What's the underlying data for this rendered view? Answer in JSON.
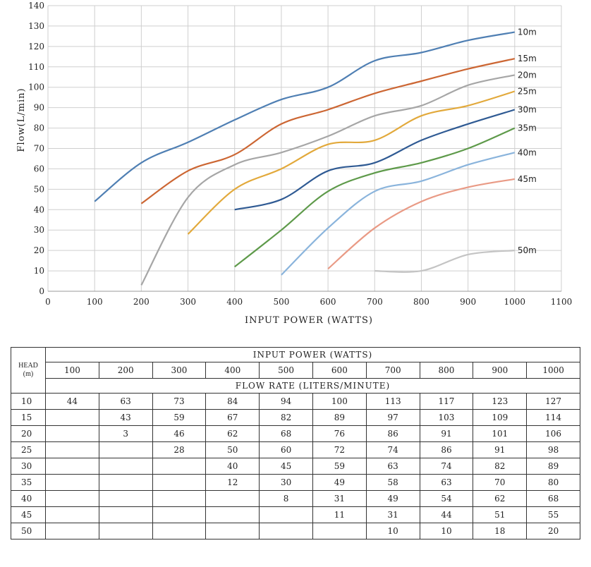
{
  "chart_data": {
    "type": "line",
    "title": "",
    "xlabel": "INPUT POWER (WATTS)",
    "ylabel": "Flow(L/min)",
    "xlim": [
      0,
      1100
    ],
    "ylim": [
      0,
      140
    ],
    "xticks": [
      0,
      100,
      200,
      300,
      400,
      500,
      600,
      700,
      800,
      900,
      1000,
      1100
    ],
    "yticks": [
      0,
      10,
      20,
      30,
      40,
      50,
      60,
      70,
      80,
      90,
      100,
      110,
      120,
      130,
      140
    ],
    "grid": true,
    "legend": "inline labels at right end of each line",
    "x": [
      100,
      200,
      300,
      400,
      500,
      600,
      700,
      800,
      900,
      1000
    ],
    "series": [
      {
        "name": "10m",
        "color": "#4f7fb3",
        "values": [
          44,
          63,
          73,
          84,
          94,
          100,
          113,
          117,
          123,
          127
        ]
      },
      {
        "name": "15m",
        "color": "#cc6633",
        "values": [
          null,
          43,
          59,
          67,
          82,
          89,
          97,
          103,
          109,
          114
        ]
      },
      {
        "name": "20m",
        "color": "#a6a6a6",
        "values": [
          null,
          3,
          46,
          62,
          68,
          76,
          86,
          91,
          101,
          106
        ]
      },
      {
        "name": "25m",
        "color": "#e2a93b",
        "values": [
          null,
          null,
          28,
          50,
          60,
          72,
          74,
          86,
          91,
          98
        ]
      },
      {
        "name": "30m",
        "color": "#2f5a93",
        "values": [
          null,
          null,
          null,
          40,
          45,
          59,
          63,
          74,
          82,
          89
        ]
      },
      {
        "name": "35m",
        "color": "#5e9a4a",
        "values": [
          null,
          null,
          null,
          12,
          30,
          49,
          58,
          63,
          70,
          80
        ]
      },
      {
        "name": "40m",
        "color": "#8ab4dc",
        "values": [
          null,
          null,
          null,
          null,
          8,
          31,
          49,
          54,
          62,
          68
        ]
      },
      {
        "name": "45m",
        "color": "#e99a85",
        "values": [
          null,
          null,
          null,
          null,
          null,
          11,
          31,
          44,
          51,
          55
        ]
      },
      {
        "name": "50m",
        "color": "#c4c4c4",
        "values": [
          null,
          null,
          null,
          null,
          null,
          null,
          10,
          10,
          18,
          20
        ]
      }
    ]
  },
  "table": {
    "head_label_line1": "HEAD",
    "head_label_line2": "(m)",
    "power_caption": "INPUT POWER (WATTS)",
    "flow_caption": "FLOW RATE (LITERS/MINUTE)",
    "power_columns": [
      "100",
      "200",
      "300",
      "400",
      "500",
      "600",
      "700",
      "800",
      "900",
      "1000"
    ],
    "rows": [
      {
        "head": "10",
        "cells": [
          "44",
          "63",
          "73",
          "84",
          "94",
          "100",
          "113",
          "117",
          "123",
          "127"
        ]
      },
      {
        "head": "15",
        "cells": [
          "",
          "43",
          "59",
          "67",
          "82",
          "89",
          "97",
          "103",
          "109",
          "114"
        ]
      },
      {
        "head": "20",
        "cells": [
          "",
          "3",
          "46",
          "62",
          "68",
          "76",
          "86",
          "91",
          "101",
          "106"
        ]
      },
      {
        "head": "25",
        "cells": [
          "",
          "",
          "28",
          "50",
          "60",
          "72",
          "74",
          "86",
          "91",
          "98"
        ]
      },
      {
        "head": "30",
        "cells": [
          "",
          "",
          "",
          "40",
          "45",
          "59",
          "63",
          "74",
          "82",
          "89"
        ]
      },
      {
        "head": "35",
        "cells": [
          "",
          "",
          "",
          "12",
          "30",
          "49",
          "58",
          "63",
          "70",
          "80"
        ]
      },
      {
        "head": "40",
        "cells": [
          "",
          "",
          "",
          "",
          "8",
          "31",
          "49",
          "54",
          "62",
          "68"
        ]
      },
      {
        "head": "45",
        "cells": [
          "",
          "",
          "",
          "",
          "",
          "11",
          "31",
          "44",
          "51",
          "55"
        ]
      },
      {
        "head": "50",
        "cells": [
          "",
          "",
          "",
          "",
          "",
          "",
          "10",
          "10",
          "18",
          "20"
        ]
      }
    ]
  }
}
